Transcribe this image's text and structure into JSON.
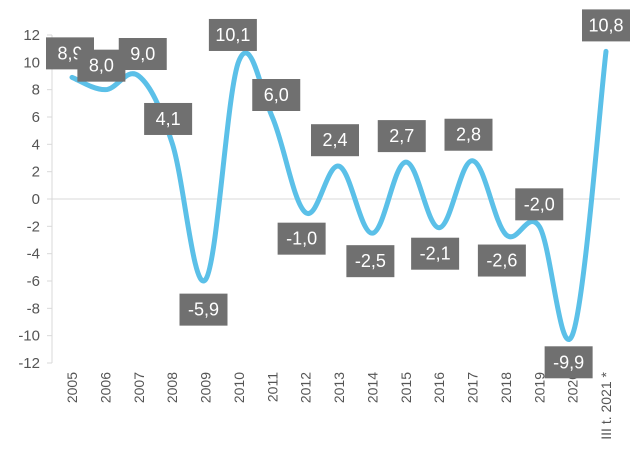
{
  "chart_data": {
    "type": "line",
    "title": "",
    "xlabel": "",
    "ylabel": "",
    "categories": [
      "2005",
      "2006",
      "2007",
      "2008",
      "2009",
      "2010",
      "2011",
      "2012",
      "2013",
      "2014",
      "2015",
      "2016",
      "2017",
      "2018",
      "2019",
      "2020",
      "III t. 2021 *"
    ],
    "series": [
      {
        "values": [
          8.9,
          8.0,
          9.0,
          4.1,
          -5.9,
          10.1,
          6.0,
          -1.0,
          2.4,
          -2.5,
          2.7,
          -2.1,
          2.8,
          -2.6,
          -2.0,
          -9.9,
          10.8
        ]
      }
    ],
    "data_labels": [
      "8,9",
      "8,0",
      "9,0",
      "4,1",
      "-5,9",
      "10,1",
      "6,0",
      "-1,0",
      "2,4",
      "-2,5",
      "2,7",
      "-2,1",
      "2,8",
      "-2,6",
      "-2,0",
      "-9,9",
      "10,8"
    ],
    "y_ticks": [
      "12",
      "10",
      "8",
      "6",
      "4",
      "2",
      "0",
      "-2",
      "-4",
      "-6",
      "-8",
      "-10",
      "-12"
    ],
    "y_tick_values": [
      12,
      10,
      8,
      6,
      4,
      2,
      0,
      -2,
      -4,
      -6,
      -8,
      -10,
      -12
    ],
    "ylim": [
      -12,
      12
    ],
    "grid": false,
    "legend": "none",
    "colors": {
      "line": "#5BC0E8",
      "label_bg": "#707070",
      "label_text": "#ffffff",
      "axis": "#d9d9d9",
      "tick_text": "#555555"
    }
  }
}
